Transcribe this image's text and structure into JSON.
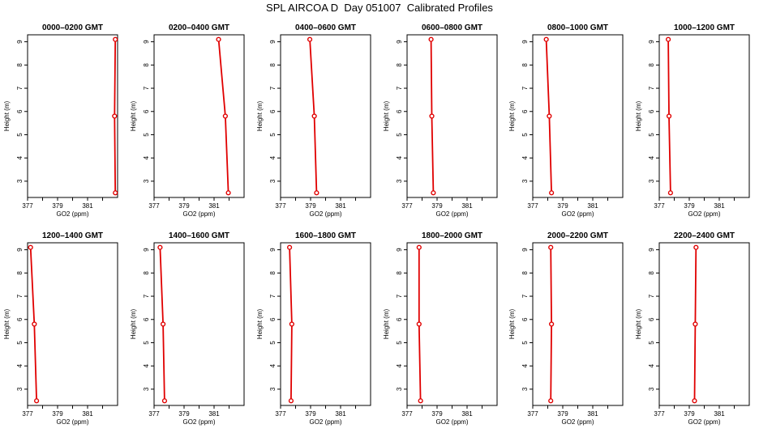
{
  "title": "SPL AIRCOA D  Day 051007  Calibrated Profiles",
  "colors": {
    "profile": "#e00000",
    "axis": "#000000"
  },
  "chart_data": [
    {
      "type": "line",
      "title": "0000–0200 GMT",
      "xlabel": "GO2 (ppm)",
      "ylabel": "Height (m)",
      "xlim": [
        377,
        383
      ],
      "ylim": [
        2.3,
        9.3
      ],
      "xticks": [
        377,
        378,
        379,
        380,
        381,
        382
      ],
      "xtick_labels": [
        "377",
        "",
        "379",
        "",
        "381",
        ""
      ],
      "yticks": [
        3,
        4,
        5,
        6,
        7,
        8,
        9
      ],
      "series": [
        {
          "x": [
            382.85,
            382.8,
            382.85
          ],
          "y": [
            9.1,
            5.8,
            2.5
          ]
        }
      ]
    },
    {
      "type": "line",
      "title": "0200–0400 GMT",
      "xlabel": "GO2 (ppm)",
      "ylabel": "Height (m)",
      "xlim": [
        377,
        383
      ],
      "ylim": [
        2.3,
        9.3
      ],
      "xticks": [
        377,
        378,
        379,
        380,
        381,
        382
      ],
      "xtick_labels": [
        "377",
        "",
        "379",
        "",
        "381",
        ""
      ],
      "yticks": [
        3,
        4,
        5,
        6,
        7,
        8,
        9
      ],
      "series": [
        {
          "x": [
            381.3,
            381.75,
            381.95
          ],
          "y": [
            9.1,
            5.8,
            2.5
          ]
        }
      ]
    },
    {
      "type": "line",
      "title": "0400–0600 GMT",
      "xlabel": "GO2 (ppm)",
      "ylabel": "Height (m)",
      "xlim": [
        377,
        383
      ],
      "ylim": [
        2.3,
        9.3
      ],
      "xticks": [
        377,
        378,
        379,
        380,
        381,
        382
      ],
      "xtick_labels": [
        "377",
        "",
        "379",
        "",
        "381",
        ""
      ],
      "yticks": [
        3,
        4,
        5,
        6,
        7,
        8,
        9
      ],
      "series": [
        {
          "x": [
            378.95,
            379.25,
            379.4
          ],
          "y": [
            9.1,
            5.8,
            2.5
          ]
        }
      ]
    },
    {
      "type": "line",
      "title": "0600–0800 GMT",
      "xlabel": "GO2 (ppm)",
      "ylabel": "Height (m)",
      "xlim": [
        377,
        383
      ],
      "ylim": [
        2.3,
        9.3
      ],
      "xticks": [
        377,
        378,
        379,
        380,
        381,
        382
      ],
      "xtick_labels": [
        "377",
        "",
        "379",
        "",
        "381",
        ""
      ],
      "yticks": [
        3,
        4,
        5,
        6,
        7,
        8,
        9
      ],
      "series": [
        {
          "x": [
            378.6,
            378.65,
            378.75
          ],
          "y": [
            9.1,
            5.8,
            2.5
          ]
        }
      ]
    },
    {
      "type": "line",
      "title": "0800–1000 GMT",
      "xlabel": "GO2 (ppm)",
      "ylabel": "Height (m)",
      "xlim": [
        377,
        383
      ],
      "ylim": [
        2.3,
        9.3
      ],
      "xticks": [
        377,
        378,
        379,
        380,
        381,
        382
      ],
      "xtick_labels": [
        "377",
        "",
        "379",
        "",
        "381",
        ""
      ],
      "yticks": [
        3,
        4,
        5,
        6,
        7,
        8,
        9
      ],
      "series": [
        {
          "x": [
            377.9,
            378.1,
            378.25
          ],
          "y": [
            9.1,
            5.8,
            2.5
          ]
        }
      ]
    },
    {
      "type": "line",
      "title": "1000–1200 GMT",
      "xlabel": "GO2 (ppm)",
      "ylabel": "Height (m)",
      "xlim": [
        377,
        383
      ],
      "ylim": [
        2.3,
        9.3
      ],
      "xticks": [
        377,
        378,
        379,
        380,
        381,
        382
      ],
      "xtick_labels": [
        "377",
        "",
        "379",
        "",
        "381",
        ""
      ],
      "yticks": [
        3,
        4,
        5,
        6,
        7,
        8,
        9
      ],
      "series": [
        {
          "x": [
            377.6,
            377.65,
            377.75
          ],
          "y": [
            9.1,
            5.8,
            2.5
          ]
        }
      ]
    },
    {
      "type": "line",
      "title": "1200–1400 GMT",
      "xlabel": "GO2 (ppm)",
      "ylabel": "Height (m)",
      "xlim": [
        377,
        383
      ],
      "ylim": [
        2.3,
        9.3
      ],
      "xticks": [
        377,
        378,
        379,
        380,
        381,
        382
      ],
      "xtick_labels": [
        "377",
        "",
        "379",
        "",
        "381",
        ""
      ],
      "yticks": [
        3,
        4,
        5,
        6,
        7,
        8,
        9
      ],
      "series": [
        {
          "x": [
            377.2,
            377.45,
            377.6
          ],
          "y": [
            9.1,
            5.8,
            2.5
          ]
        }
      ]
    },
    {
      "type": "line",
      "title": "1400–1600 GMT",
      "xlabel": "GO2 (ppm)",
      "ylabel": "Height (m)",
      "xlim": [
        377,
        383
      ],
      "ylim": [
        2.3,
        9.3
      ],
      "xticks": [
        377,
        378,
        379,
        380,
        381,
        382
      ],
      "xtick_labels": [
        "377",
        "",
        "379",
        "",
        "381",
        ""
      ],
      "yticks": [
        3,
        4,
        5,
        6,
        7,
        8,
        9
      ],
      "series": [
        {
          "x": [
            377.4,
            377.6,
            377.7
          ],
          "y": [
            9.1,
            5.8,
            2.5
          ]
        }
      ]
    },
    {
      "type": "line",
      "title": "1600–1800 GMT",
      "xlabel": "GO2 (ppm)",
      "ylabel": "Height (m)",
      "xlim": [
        377,
        383
      ],
      "ylim": [
        2.3,
        9.3
      ],
      "xticks": [
        377,
        378,
        379,
        380,
        381,
        382
      ],
      "xtick_labels": [
        "377",
        "",
        "379",
        "",
        "381",
        ""
      ],
      "yticks": [
        3,
        4,
        5,
        6,
        7,
        8,
        9
      ],
      "series": [
        {
          "x": [
            377.6,
            377.75,
            377.7
          ],
          "y": [
            9.1,
            5.8,
            2.5
          ]
        }
      ]
    },
    {
      "type": "line",
      "title": "1800–2000 GMT",
      "xlabel": "GO2 (ppm)",
      "ylabel": "Height (m)",
      "xlim": [
        377,
        383
      ],
      "ylim": [
        2.3,
        9.3
      ],
      "xticks": [
        377,
        378,
        379,
        380,
        381,
        382
      ],
      "xtick_labels": [
        "377",
        "",
        "379",
        "",
        "381",
        ""
      ],
      "yticks": [
        3,
        4,
        5,
        6,
        7,
        8,
        9
      ],
      "series": [
        {
          "x": [
            377.8,
            377.8,
            377.9
          ],
          "y": [
            9.1,
            5.8,
            2.5
          ]
        }
      ]
    },
    {
      "type": "line",
      "title": "2000–2200 GMT",
      "xlabel": "GO2 (ppm)",
      "ylabel": "Height (m)",
      "xlim": [
        377,
        383
      ],
      "ylim": [
        2.3,
        9.3
      ],
      "xticks": [
        377,
        378,
        379,
        380,
        381,
        382
      ],
      "xtick_labels": [
        "377",
        "",
        "379",
        "",
        "381",
        ""
      ],
      "yticks": [
        3,
        4,
        5,
        6,
        7,
        8,
        9
      ],
      "series": [
        {
          "x": [
            378.2,
            378.25,
            378.2
          ],
          "y": [
            9.1,
            5.8,
            2.5
          ]
        }
      ]
    },
    {
      "type": "line",
      "title": "2200–2400 GMT",
      "xlabel": "GO2 (ppm)",
      "ylabel": "Height (m)",
      "xlim": [
        377,
        383
      ],
      "ylim": [
        2.3,
        9.3
      ],
      "xticks": [
        377,
        378,
        379,
        380,
        381,
        382
      ],
      "xtick_labels": [
        "377",
        "",
        "379",
        "",
        "381",
        ""
      ],
      "yticks": [
        3,
        4,
        5,
        6,
        7,
        8,
        9
      ],
      "series": [
        {
          "x": [
            379.45,
            379.4,
            379.35
          ],
          "y": [
            9.1,
            5.8,
            2.5
          ]
        }
      ]
    }
  ]
}
